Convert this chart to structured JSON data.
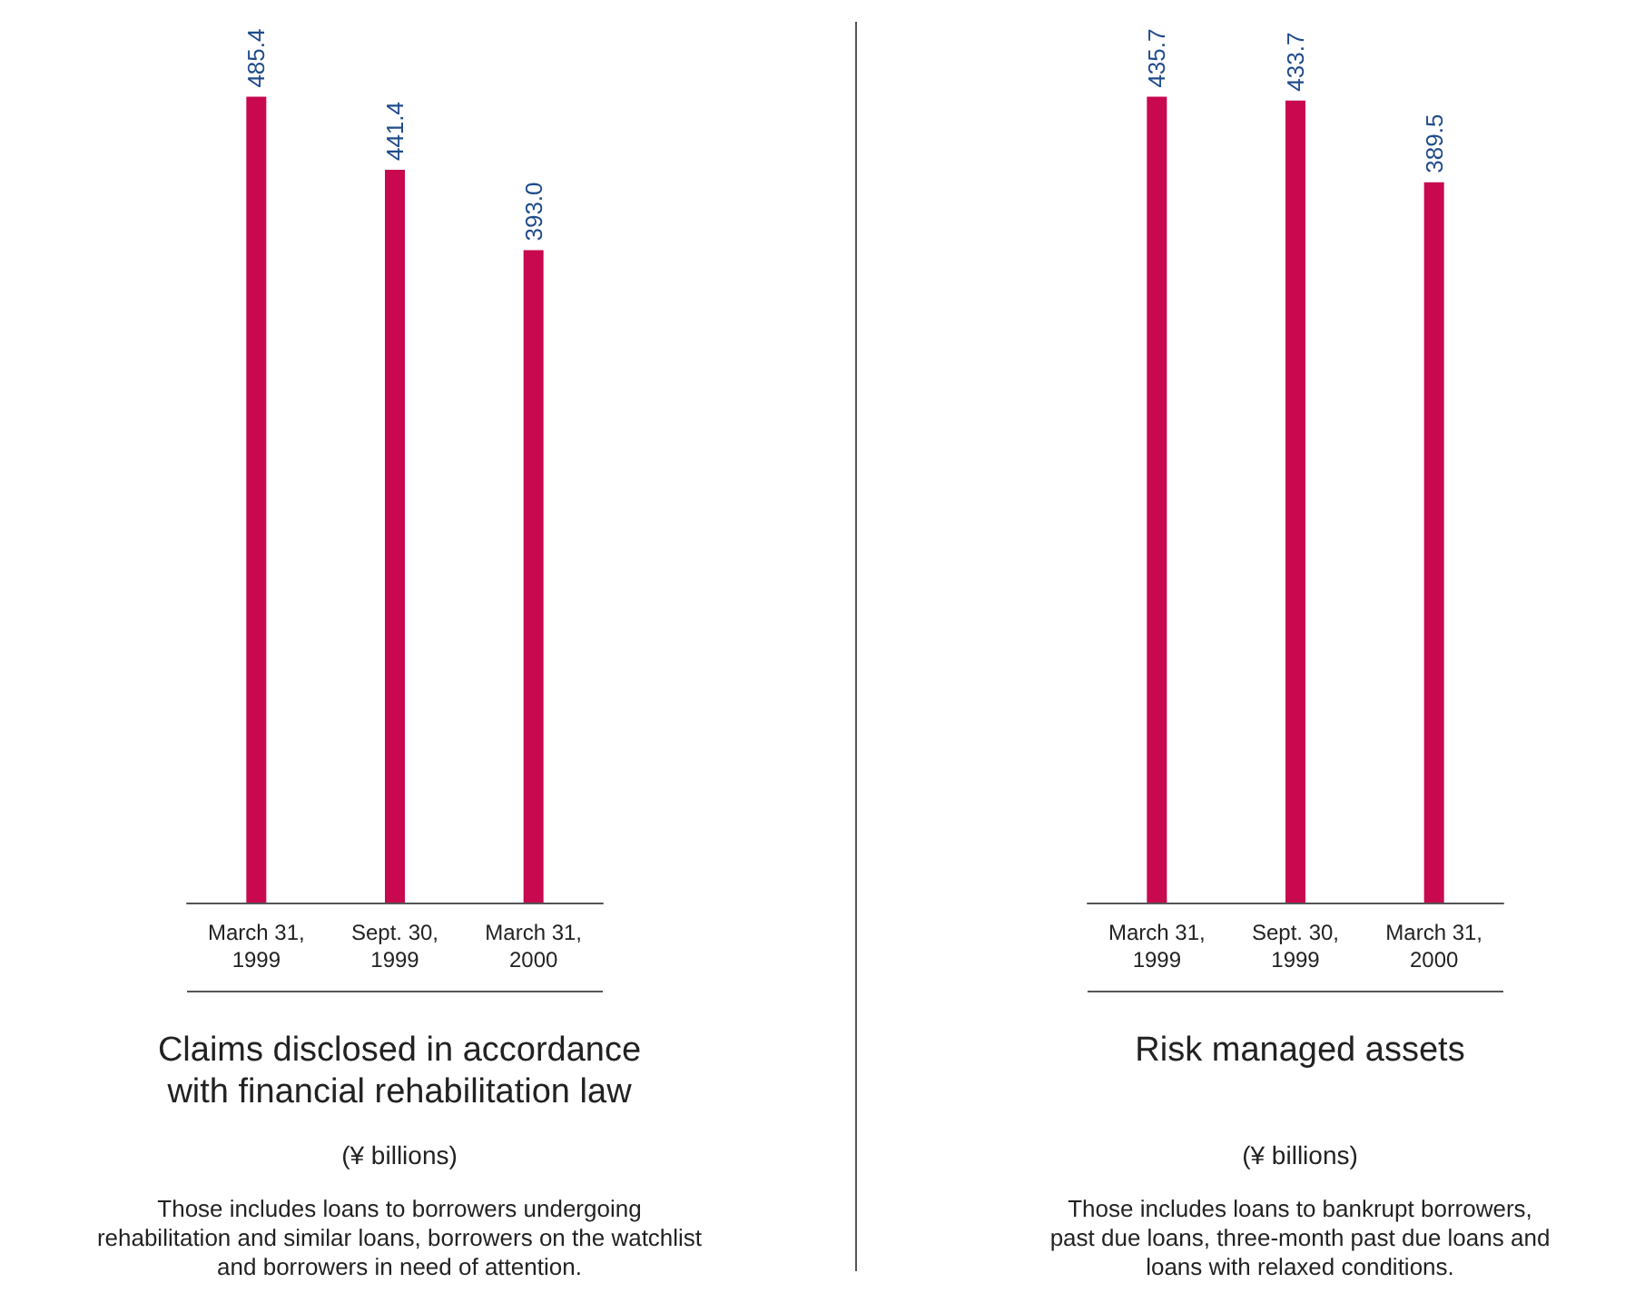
{
  "chart_data": [
    {
      "type": "bar",
      "title": "Claims disclosed in accordance\nwith financial rehabilitation law",
      "subtitle": "(¥ billions)",
      "annotations": [
        "Those includes loans to borrowers undergoing\nrehabilitation and similar loans, borrowers on the watchlist\nand borrowers in need of attention."
      ],
      "categories": [
        "March 31,\n1999",
        "Sept. 30,\n1999",
        "March 31,\n2000"
      ],
      "values": [
        485.4,
        441.4,
        393.0
      ],
      "value_labels": [
        "485.4",
        "441.4",
        "393.0"
      ],
      "color": "#c8084f"
    },
    {
      "type": "bar",
      "title": "Risk managed assets",
      "subtitle": "(¥ billions)",
      "annotations": [
        "Those includes loans to bankrupt borrowers,\npast due loans, three-month past due loans and\nloans with relaxed conditions."
      ],
      "categories": [
        "March 31,\n1999",
        "Sept. 30,\n1999",
        "March 31,\n2000"
      ],
      "values": [
        435.7,
        433.7,
        389.5
      ],
      "value_labels": [
        "435.7",
        "433.7",
        "389.5"
      ],
      "color": "#c8084f"
    }
  ]
}
